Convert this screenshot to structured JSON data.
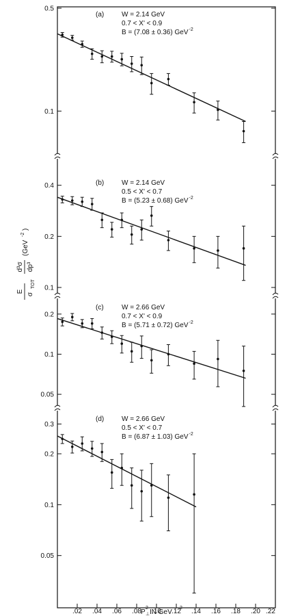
{
  "chart_data": [
    {
      "panel": "a",
      "type": "scatter",
      "label": "(a)",
      "annotation": [
        "W = 2.14 GeV",
        "0.7 < X' < 0.9",
        "B = (7.08 ± 0.36) GeV"
      ],
      "annotation_sup": "-2",
      "yscale": "log",
      "ylim": [
        0.06,
        0.5
      ],
      "yticks": [
        {
          "v": 0.5,
          "label": "0.5"
        },
        {
          "v": 0.1,
          "label": "0.1"
        }
      ],
      "x": [
        0.005,
        0.015,
        0.025,
        0.035,
        0.045,
        0.055,
        0.065,
        0.075,
        0.085,
        0.095,
        0.112,
        0.138,
        0.162,
        0.188
      ],
      "y": [
        0.33,
        0.315,
        0.285,
        0.245,
        0.235,
        0.235,
        0.225,
        0.21,
        0.205,
        0.155,
        0.165,
        0.115,
        0.102,
        0.073
      ],
      "err": [
        0.012,
        0.012,
        0.014,
        0.02,
        0.022,
        0.02,
        0.022,
        0.025,
        0.028,
        0.025,
        0.015,
        0.018,
        0.015,
        0.012
      ],
      "fit": {
        "x": [
          0,
          0.19
        ],
        "y": [
          0.335,
          0.085
        ]
      }
    },
    {
      "panel": "b",
      "type": "scatter",
      "label": "(b)",
      "annotation": [
        "W = 2.14 GeV",
        "0.5 < X' < 0.7",
        "B = (5.23 ± 0.68) GeV"
      ],
      "annotation_sup": "-2",
      "yscale": "log",
      "ylim": [
        0.1,
        0.45
      ],
      "yticks": [
        {
          "v": 0.4,
          "label": "0.4"
        },
        {
          "v": 0.2,
          "label": "0.2"
        },
        {
          "v": 0.1,
          "label": "0.1"
        }
      ],
      "x": [
        0.005,
        0.015,
        0.025,
        0.035,
        0.045,
        0.055,
        0.065,
        0.075,
        0.085,
        0.095,
        0.112,
        0.138,
        0.162,
        0.188
      ],
      "y": [
        0.33,
        0.325,
        0.32,
        0.31,
        0.25,
        0.22,
        0.25,
        0.205,
        0.22,
        0.265,
        0.19,
        0.17,
        0.165,
        0.17
      ],
      "err": [
        0.015,
        0.018,
        0.02,
        0.025,
        0.025,
        0.022,
        0.025,
        0.025,
        0.03,
        0.035,
        0.025,
        0.03,
        0.035,
        0.06
      ],
      "fit": {
        "x": [
          0,
          0.19
        ],
        "y": [
          0.34,
          0.135
        ]
      }
    },
    {
      "panel": "c",
      "type": "scatter",
      "label": "(c)",
      "annotation": [
        "W = 2.66 GeV",
        "0.7 < X' < 0.9",
        "B = (5.71 ± 0.72) GeV"
      ],
      "annotation_sup": "-2",
      "yscale": "log",
      "ylim": [
        0.045,
        0.25
      ],
      "yticks": [
        {
          "v": 0.2,
          "label": "0.2"
        },
        {
          "v": 0.1,
          "label": "0.1"
        },
        {
          "v": 0.05,
          "label": "0.05"
        }
      ],
      "x": [
        0.005,
        0.015,
        0.025,
        0.035,
        0.045,
        0.055,
        0.065,
        0.075,
        0.085,
        0.095,
        0.112,
        0.138,
        0.162,
        0.188
      ],
      "y": [
        0.175,
        0.19,
        0.17,
        0.17,
        0.145,
        0.135,
        0.12,
        0.105,
        0.115,
        0.09,
        0.1,
        0.085,
        0.092,
        0.075
      ],
      "err": [
        0.012,
        0.012,
        0.012,
        0.015,
        0.015,
        0.015,
        0.018,
        0.018,
        0.022,
        0.018,
        0.018,
        0.02,
        0.035,
        0.04
      ],
      "fit": {
        "x": [
          0,
          0.19
        ],
        "y": [
          0.185,
          0.066
        ]
      }
    },
    {
      "panel": "d",
      "type": "scatter",
      "label": "(d)",
      "annotation": [
        "W = 2.66 GeV",
        "0.5 < X' < 0.7",
        "B = (6.87 ± 1.03) GeV"
      ],
      "annotation_sup": "-2",
      "yscale": "log",
      "ylim": [
        0.025,
        0.35
      ],
      "yticks": [
        {
          "v": 0.3,
          "label": "0.3"
        },
        {
          "v": 0.2,
          "label": "0.2"
        },
        {
          "v": 0.1,
          "label": "0.1"
        },
        {
          "v": 0.05,
          "label": "0.05"
        }
      ],
      "x": [
        0.005,
        0.015,
        0.025,
        0.035,
        0.045,
        0.055,
        0.065,
        0.075,
        0.085,
        0.095,
        0.112,
        0.138
      ],
      "y": [
        0.245,
        0.22,
        0.23,
        0.215,
        0.205,
        0.155,
        0.165,
        0.13,
        0.12,
        0.13,
        0.11,
        0.115
      ],
      "err": [
        0.015,
        0.018,
        0.022,
        0.022,
        0.025,
        0.03,
        0.035,
        0.035,
        0.04,
        0.045,
        0.04,
        0.085
      ],
      "fit": {
        "x": [
          0,
          0.14
        ],
        "y": [
          0.255,
          0.097
        ]
      }
    }
  ],
  "x_axis": {
    "xlim": [
      0,
      0.22
    ],
    "ticks": [
      {
        "v": 0.02,
        "label": ".02"
      },
      {
        "v": 0.04,
        "label": ".04"
      },
      {
        "v": 0.06,
        "label": ".06"
      },
      {
        "v": 0.08,
        "label": ".08"
      },
      {
        "v": 0.1,
        "label": ".10"
      },
      {
        "v": 0.12,
        "label": ".12"
      },
      {
        "v": 0.14,
        "label": ".14"
      },
      {
        "v": 0.16,
        "label": ".16"
      },
      {
        "v": 0.18,
        "label": ".18"
      },
      {
        "v": 0.2,
        "label": ".20"
      },
      {
        "v": 0.22,
        "label": ".22"
      }
    ],
    "label_main": "P",
    "label_sup": "2",
    "label_sub": "⊥",
    "label_rest": " IN GeV",
    "label_unit_sup": "2"
  },
  "y_axis": {
    "label_E": "E",
    "label_sigma": "σ",
    "label_tot": "TOT",
    "label_d3sigma": "d³σ",
    "label_dp3": "dp³",
    "label_unit": "(GeV",
    "label_unit_sup": "-2",
    "label_unit_close": ")"
  }
}
